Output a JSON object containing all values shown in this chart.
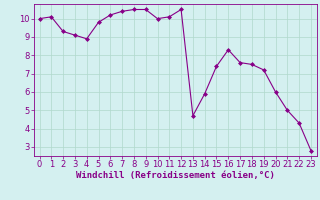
{
  "x": [
    0,
    1,
    2,
    3,
    4,
    5,
    6,
    7,
    8,
    9,
    10,
    11,
    12,
    13,
    14,
    15,
    16,
    17,
    18,
    19,
    20,
    21,
    22,
    23
  ],
  "y": [
    10.0,
    10.1,
    9.3,
    9.1,
    8.9,
    9.8,
    10.2,
    10.4,
    10.5,
    10.5,
    10.0,
    10.1,
    10.5,
    4.7,
    5.9,
    7.4,
    8.3,
    7.6,
    7.5,
    7.2,
    6.0,
    5.0,
    4.3,
    2.8
  ],
  "line_color": "#880088",
  "marker": "D",
  "marker_size": 2.0,
  "bg_color": "#d4f0f0",
  "grid_color": "#b0d8cc",
  "xlabel": "Windchill (Refroidissement éolien,°C)",
  "xlim": [
    -0.5,
    23.5
  ],
  "ylim": [
    2.5,
    10.8
  ],
  "yticks": [
    3,
    4,
    5,
    6,
    7,
    8,
    9,
    10
  ],
  "xticks": [
    0,
    1,
    2,
    3,
    4,
    5,
    6,
    7,
    8,
    9,
    10,
    11,
    12,
    13,
    14,
    15,
    16,
    17,
    18,
    19,
    20,
    21,
    22,
    23
  ],
  "xlabel_fontsize": 6.5,
  "tick_fontsize": 6.0,
  "line_width": 0.8
}
